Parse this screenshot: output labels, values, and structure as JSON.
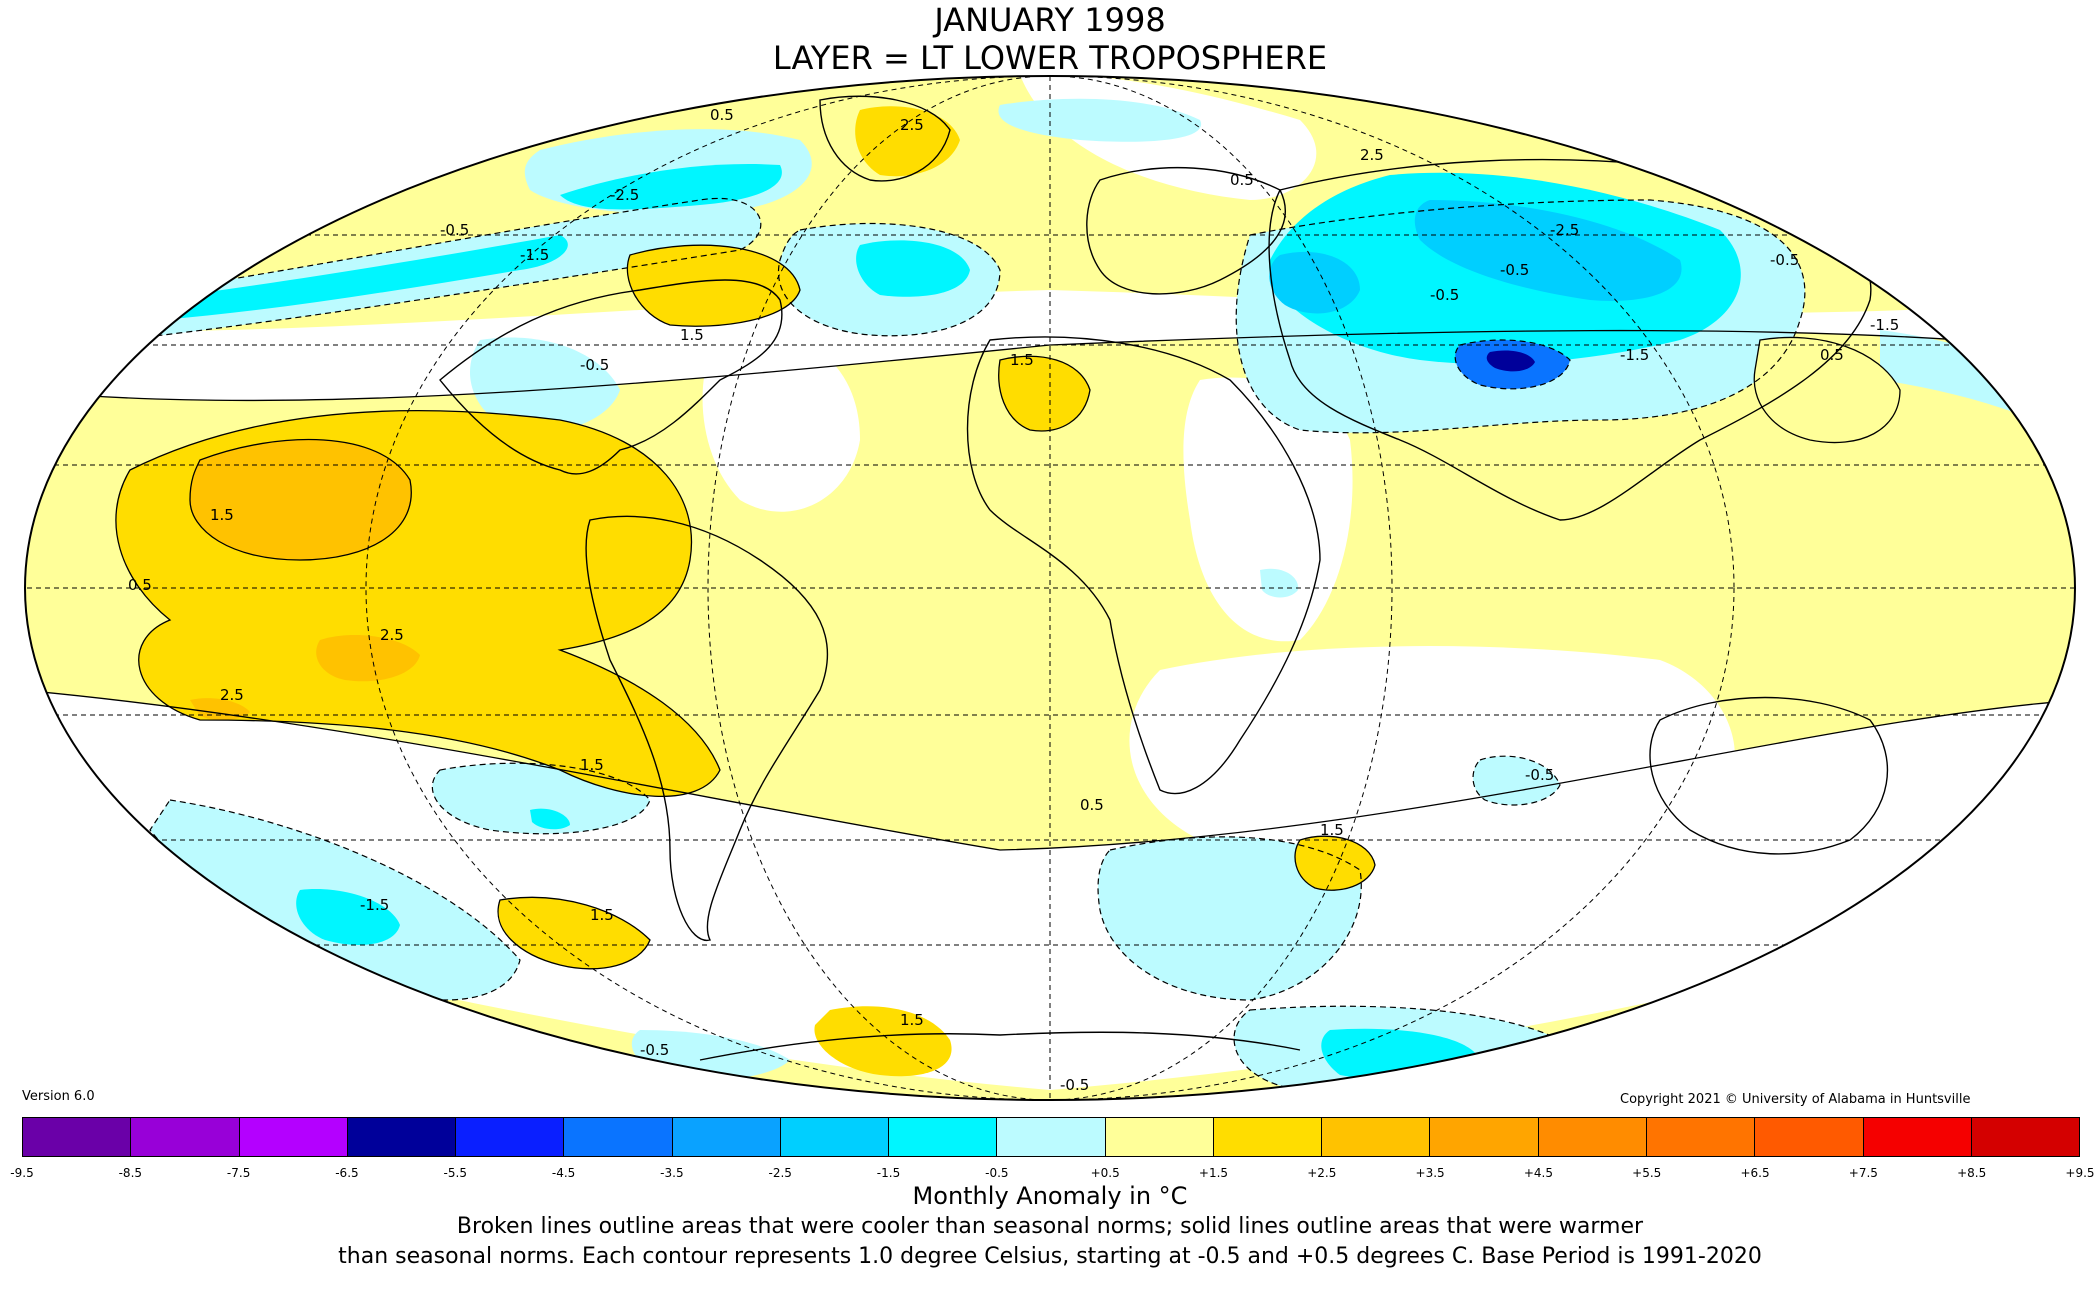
{
  "title": {
    "line1": "JANUARY 1998",
    "line2": "LAYER = LT LOWER TROPOSPHERE"
  },
  "version": "Version 6.0",
  "copyright": "Copyright 2021 © University of Alabama in Huntsville",
  "legend": {
    "label": "Monthly Anomaly in °C",
    "ticks": [
      "-9.5",
      "-8.5",
      "-7.5",
      "-6.5",
      "-5.5",
      "-4.5",
      "-3.5",
      "-2.5",
      "-1.5",
      "-0.5",
      "+0.5",
      "+1.5",
      "+2.5",
      "+3.5",
      "+4.5",
      "+5.5",
      "+6.5",
      "+7.5",
      "+8.5",
      "+9.5"
    ],
    "colors": [
      "#3d0060",
      "#6a00a8",
      "#9800d8",
      "#b400ff",
      "#00009a",
      "#0a1fff",
      "#0a74ff",
      "#0aa2ff",
      "#00cfff",
      "#00f6ff",
      "#bcfbff",
      "#ffffff",
      "#ffff99",
      "#ffdd00",
      "#ffc200",
      "#ffa500",
      "#ff8c00",
      "#ff7400",
      "#ff5a00",
      "#f50000",
      "#d40000",
      "#b00000"
    ]
  },
  "notes": {
    "line1": "Broken lines outline areas that were cooler than seasonal norms; solid lines outline areas that were warmer",
    "line2": "than seasonal norms. Each contour represents 1.0 degree Celsius, starting at -0.5 and +0.5 degrees C. Base Period is 1991-2020"
  },
  "map": {
    "projection": "mollweide",
    "fill_colors": {
      "ocean_base": "#ffff99",
      "neutral": "#ffffff",
      "cool1": "#bcfbff",
      "cool2": "#00f6ff",
      "cool3": "#00cfff",
      "cool4": "#0a74ff",
      "cool6": "#00009a",
      "warm2": "#ffdd00",
      "warm3": "#ffc200"
    },
    "contour_labels": [
      "0.5",
      "1.5",
      "2.5",
      "-0.5",
      "-1.5",
      "-2.5",
      "1.5",
      "2.5",
      "0.5",
      "-0.5",
      "1.5",
      "2.5",
      "-2.5",
      "-1.5",
      "-0.5",
      "1.5",
      "0.5",
      "0.5",
      "1.5",
      "-0.5",
      "-1.5",
      "-0.5",
      "2.5",
      "1.5",
      "0.5",
      "-0.5",
      "1.5",
      "-1.5",
      "-0.5",
      "-0.5"
    ]
  }
}
